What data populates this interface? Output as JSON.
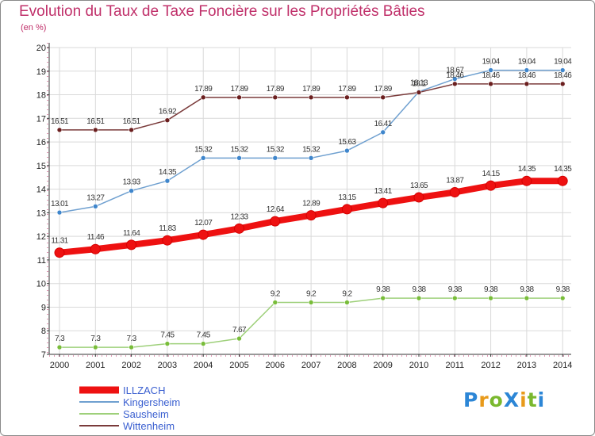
{
  "title": "Evolution du Taux de Taxe Foncière sur les Propriétés Bâties",
  "unit": "(en %)",
  "logo": "ProXiti",
  "colors": {
    "title": "#c0306a",
    "axis": "#333333",
    "grid": "#d9d9d9",
    "axis_accent": "#c0306a",
    "logo_p": "#2c86d6",
    "logo_r": "#e89a1a",
    "logo_o": "#7ab82e",
    "logo_x": "#2c86d6",
    "logo_i": "#e89a1a",
    "logo_t": "#7ab82e"
  },
  "chart_data": {
    "type": "line",
    "x": [
      2000,
      2001,
      2002,
      2003,
      2004,
      2005,
      2006,
      2007,
      2008,
      2009,
      2010,
      2011,
      2012,
      2013,
      2014
    ],
    "xlabels": [
      "2000",
      "2001",
      "2002",
      "2003",
      "2004",
      "2005",
      "2006",
      "2007",
      "2008",
      "2009",
      "2010",
      "2011",
      "2012",
      "2013",
      "2014"
    ],
    "ylim": [
      7,
      20
    ],
    "yticks": [
      "7",
      "8",
      "9",
      "10",
      "11",
      "12",
      "13",
      "14",
      "15",
      "16",
      "17",
      "18",
      "19",
      "20"
    ],
    "grid": true,
    "legend_position": "bottom-left",
    "series": [
      {
        "name": "ILLZACH",
        "color": "#ee1111",
        "width": 8,
        "marker": 6,
        "values": [
          11.31,
          11.46,
          11.64,
          11.83,
          12.07,
          12.33,
          12.64,
          12.89,
          13.15,
          13.41,
          13.65,
          13.87,
          14.15,
          14.35,
          14.35
        ],
        "labels": [
          "11.31",
          "11.46",
          "11.64",
          "11.83",
          "12.07",
          "12.33",
          "12.64",
          "12.89",
          "13.15",
          "13.41",
          "13.65",
          "13.87",
          "14.15",
          "14.35",
          "14.35"
        ]
      },
      {
        "name": "Kingersheim",
        "color": "#6fa0d0",
        "width": 1.5,
        "marker": 3,
        "marker_fill": "#3f86cc",
        "values": [
          13.01,
          13.27,
          13.93,
          14.35,
          15.32,
          15.32,
          15.32,
          15.32,
          15.63,
          16.41,
          18.13,
          18.67,
          19.04,
          19.04,
          19.04
        ],
        "labels": [
          "13.01",
          "13.27",
          "13.93",
          "14.35",
          "15.32",
          "15.32",
          "15.32",
          "15.32",
          "15.63",
          "16.41",
          "18.13",
          "18.67",
          "19.04",
          "19.04",
          "19.04"
        ]
      },
      {
        "name": "Sausheim",
        "color": "#9ed07a",
        "width": 1.5,
        "marker": 3,
        "marker_fill": "#79bd3a",
        "values": [
          7.3,
          7.3,
          7.3,
          7.45,
          7.45,
          7.67,
          9.2,
          9.2,
          9.2,
          9.38,
          9.38,
          9.38,
          9.38,
          9.38,
          9.38
        ],
        "labels": [
          "7.3",
          "7.3",
          "7.3",
          "7.45",
          "7.45",
          "7.67",
          "9.2",
          "9.2",
          "9.2",
          "9.38",
          "9.38",
          "9.38",
          "9.38",
          "9.38",
          "9.38"
        ]
      },
      {
        "name": "Wittenheim",
        "color": "#7a3a3a",
        "width": 1.5,
        "marker": 3,
        "marker_fill": "#6b1f1f",
        "values": [
          16.51,
          16.51,
          16.51,
          16.92,
          17.89,
          17.89,
          17.89,
          17.89,
          17.89,
          17.89,
          18.1,
          18.46,
          18.46,
          18.46,
          18.46
        ],
        "labels": [
          "16.51",
          "16.51",
          "16.51",
          "16.92",
          "17.89",
          "17.89",
          "17.89",
          "17.89",
          "17.89",
          "17.89",
          "18.1",
          "18.46",
          "18.46",
          "18.46",
          "18.46"
        ]
      }
    ]
  }
}
